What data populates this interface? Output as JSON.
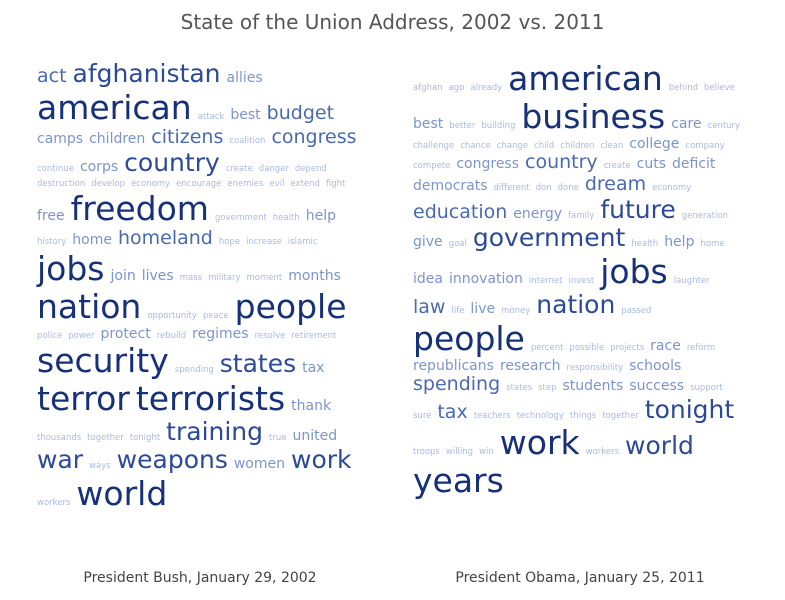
{
  "title": "State of the Union Address, 2002 vs. 2011",
  "colors": {
    "darkest": "#17307a",
    "dark": "#2c4a98",
    "medium": "#4a69b3",
    "light": "#7b95cc",
    "lightest": "#a9bbe1"
  },
  "captions": {
    "left": "President Bush, January 29, 2002",
    "right": "President Obama, January 25, 2011"
  },
  "chart_data": [
    {
      "type": "wordcloud",
      "caption": "President Bush, January 29, 2002",
      "words": [
        {
          "text": "act",
          "weight": 3
        },
        {
          "text": "afghanistan",
          "weight": 4
        },
        {
          "text": "allies",
          "weight": 2
        },
        {
          "text": "american",
          "weight": 5
        },
        {
          "text": "attack",
          "weight": 1
        },
        {
          "text": "best",
          "weight": 2
        },
        {
          "text": "budget",
          "weight": 3
        },
        {
          "text": "camps",
          "weight": 2
        },
        {
          "text": "children",
          "weight": 2
        },
        {
          "text": "citizens",
          "weight": 3
        },
        {
          "text": "coalition",
          "weight": 1
        },
        {
          "text": "congress",
          "weight": 3
        },
        {
          "text": "continue",
          "weight": 1
        },
        {
          "text": "corps",
          "weight": 2
        },
        {
          "text": "country",
          "weight": 4
        },
        {
          "text": "create",
          "weight": 1
        },
        {
          "text": "danger",
          "weight": 1
        },
        {
          "text": "depend",
          "weight": 1
        },
        {
          "text": "destruction",
          "weight": 1
        },
        {
          "text": "develop",
          "weight": 1
        },
        {
          "text": "economy",
          "weight": 1
        },
        {
          "text": "encourage",
          "weight": 1
        },
        {
          "text": "enemies",
          "weight": 1
        },
        {
          "text": "evil",
          "weight": 1
        },
        {
          "text": "extend",
          "weight": 1
        },
        {
          "text": "fight",
          "weight": 1
        },
        {
          "text": "free",
          "weight": 2
        },
        {
          "text": "freedom",
          "weight": 5
        },
        {
          "text": "government",
          "weight": 1
        },
        {
          "text": "health",
          "weight": 1
        },
        {
          "text": "help",
          "weight": 2
        },
        {
          "text": "history",
          "weight": 1
        },
        {
          "text": "home",
          "weight": 2
        },
        {
          "text": "homeland",
          "weight": 3
        },
        {
          "text": "hope",
          "weight": 1
        },
        {
          "text": "increase",
          "weight": 1
        },
        {
          "text": "islamic",
          "weight": 1
        },
        {
          "text": "jobs",
          "weight": 5
        },
        {
          "text": "join",
          "weight": 2
        },
        {
          "text": "lives",
          "weight": 2
        },
        {
          "text": "mass",
          "weight": 1
        },
        {
          "text": "military",
          "weight": 1
        },
        {
          "text": "moment",
          "weight": 1
        },
        {
          "text": "months",
          "weight": 2
        },
        {
          "text": "nation",
          "weight": 5
        },
        {
          "text": "opportunity",
          "weight": 1
        },
        {
          "text": "peace",
          "weight": 1
        },
        {
          "text": "people",
          "weight": 5
        },
        {
          "text": "police",
          "weight": 1
        },
        {
          "text": "power",
          "weight": 1
        },
        {
          "text": "protect",
          "weight": 2
        },
        {
          "text": "rebuild",
          "weight": 1
        },
        {
          "text": "regimes",
          "weight": 2
        },
        {
          "text": "resolve",
          "weight": 1
        },
        {
          "text": "retirement",
          "weight": 1
        },
        {
          "text": "security",
          "weight": 5
        },
        {
          "text": "spending",
          "weight": 1
        },
        {
          "text": "states",
          "weight": 4
        },
        {
          "text": "tax",
          "weight": 2
        },
        {
          "text": "terror",
          "weight": 5
        },
        {
          "text": "terrorists",
          "weight": 5
        },
        {
          "text": "thank",
          "weight": 2
        },
        {
          "text": "thousands",
          "weight": 1
        },
        {
          "text": "together",
          "weight": 1
        },
        {
          "text": "tonight",
          "weight": 1
        },
        {
          "text": "training",
          "weight": 4
        },
        {
          "text": "true",
          "weight": 1
        },
        {
          "text": "united",
          "weight": 2
        },
        {
          "text": "war",
          "weight": 4
        },
        {
          "text": "ways",
          "weight": 1
        },
        {
          "text": "weapons",
          "weight": 4
        },
        {
          "text": "women",
          "weight": 2
        },
        {
          "text": "work",
          "weight": 4
        },
        {
          "text": "workers",
          "weight": 1
        },
        {
          "text": "world",
          "weight": 5
        }
      ]
    },
    {
      "type": "wordcloud",
      "caption": "President Obama, January 25, 2011",
      "words": [
        {
          "text": "afghan",
          "weight": 1
        },
        {
          "text": "ago",
          "weight": 1
        },
        {
          "text": "already",
          "weight": 1
        },
        {
          "text": "american",
          "weight": 5
        },
        {
          "text": "behind",
          "weight": 1
        },
        {
          "text": "believe",
          "weight": 1
        },
        {
          "text": "best",
          "weight": 2
        },
        {
          "text": "better",
          "weight": 1
        },
        {
          "text": "building",
          "weight": 1
        },
        {
          "text": "business",
          "weight": 5
        },
        {
          "text": "care",
          "weight": 2
        },
        {
          "text": "century",
          "weight": 1
        },
        {
          "text": "challenge",
          "weight": 1
        },
        {
          "text": "chance",
          "weight": 1
        },
        {
          "text": "change",
          "weight": 1
        },
        {
          "text": "child",
          "weight": 1
        },
        {
          "text": "children",
          "weight": 1
        },
        {
          "text": "clean",
          "weight": 1
        },
        {
          "text": "college",
          "weight": 2
        },
        {
          "text": "company",
          "weight": 1
        },
        {
          "text": "compete",
          "weight": 1
        },
        {
          "text": "congress",
          "weight": 2
        },
        {
          "text": "country",
          "weight": 3
        },
        {
          "text": "create",
          "weight": 1
        },
        {
          "text": "cuts",
          "weight": 2
        },
        {
          "text": "deficit",
          "weight": 2
        },
        {
          "text": "democrats",
          "weight": 2
        },
        {
          "text": "different",
          "weight": 1
        },
        {
          "text": "don",
          "weight": 1
        },
        {
          "text": "done",
          "weight": 1
        },
        {
          "text": "dream",
          "weight": 3
        },
        {
          "text": "economy",
          "weight": 1
        },
        {
          "text": "education",
          "weight": 3
        },
        {
          "text": "energy",
          "weight": 2
        },
        {
          "text": "family",
          "weight": 1
        },
        {
          "text": "future",
          "weight": 4
        },
        {
          "text": "generation",
          "weight": 1
        },
        {
          "text": "give",
          "weight": 2
        },
        {
          "text": "goal",
          "weight": 1
        },
        {
          "text": "government",
          "weight": 4
        },
        {
          "text": "health",
          "weight": 1
        },
        {
          "text": "help",
          "weight": 2
        },
        {
          "text": "home",
          "weight": 1
        },
        {
          "text": "idea",
          "weight": 2
        },
        {
          "text": "innovation",
          "weight": 2
        },
        {
          "text": "internet",
          "weight": 1
        },
        {
          "text": "invest",
          "weight": 1
        },
        {
          "text": "jobs",
          "weight": 5
        },
        {
          "text": "laughter",
          "weight": 1
        },
        {
          "text": "law",
          "weight": 3
        },
        {
          "text": "life",
          "weight": 1
        },
        {
          "text": "live",
          "weight": 2
        },
        {
          "text": "money",
          "weight": 1
        },
        {
          "text": "nation",
          "weight": 4
        },
        {
          "text": "passed",
          "weight": 1
        },
        {
          "text": "people",
          "weight": 5
        },
        {
          "text": "percent",
          "weight": 1
        },
        {
          "text": "possible",
          "weight": 1
        },
        {
          "text": "projects",
          "weight": 1
        },
        {
          "text": "race",
          "weight": 2
        },
        {
          "text": "reform",
          "weight": 1
        },
        {
          "text": "republicans",
          "weight": 2
        },
        {
          "text": "research",
          "weight": 2
        },
        {
          "text": "responsibility",
          "weight": 1
        },
        {
          "text": "schools",
          "weight": 2
        },
        {
          "text": "spending",
          "weight": 3
        },
        {
          "text": "states",
          "weight": 1
        },
        {
          "text": "step",
          "weight": 1
        },
        {
          "text": "students",
          "weight": 2
        },
        {
          "text": "success",
          "weight": 2
        },
        {
          "text": "support",
          "weight": 1
        },
        {
          "text": "sure",
          "weight": 1
        },
        {
          "text": "tax",
          "weight": 3
        },
        {
          "text": "teachers",
          "weight": 1
        },
        {
          "text": "technology",
          "weight": 1
        },
        {
          "text": "things",
          "weight": 1
        },
        {
          "text": "together",
          "weight": 1
        },
        {
          "text": "tonight",
          "weight": 4
        },
        {
          "text": "troops",
          "weight": 1
        },
        {
          "text": "willing",
          "weight": 1
        },
        {
          "text": "win",
          "weight": 1
        },
        {
          "text": "work",
          "weight": 5
        },
        {
          "text": "workers",
          "weight": 1
        },
        {
          "text": "world",
          "weight": 4
        },
        {
          "text": "years",
          "weight": 5
        }
      ]
    }
  ]
}
